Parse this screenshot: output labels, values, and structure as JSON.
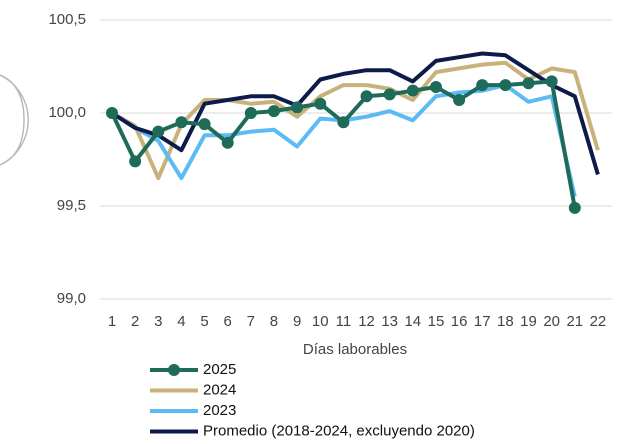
{
  "chart_data": {
    "type": "line",
    "x_label": "Días laborables",
    "categories": [
      "1",
      "2",
      "3",
      "4",
      "5",
      "6",
      "7",
      "8",
      "9",
      "10",
      "11",
      "12",
      "13",
      "14",
      "15",
      "16",
      "17",
      "18",
      "19",
      "20",
      "21",
      "22"
    ],
    "ylim": [
      99.0,
      100.5
    ],
    "yticks": [
      {
        "value": 99.0,
        "label": "99,0"
      },
      {
        "value": 99.5,
        "label": "99,5"
      },
      {
        "value": 100.0,
        "label": "100,0"
      },
      {
        "value": 100.5,
        "label": "100,5"
      }
    ],
    "grid": true,
    "series": [
      {
        "name": "2025",
        "color": "#1f6b5a",
        "markers": true,
        "values": [
          100.0,
          99.74,
          99.9,
          99.95,
          99.94,
          99.84,
          100.0,
          100.01,
          100.03,
          100.05,
          99.95,
          100.09,
          100.1,
          100.12,
          100.14,
          100.07,
          100.15,
          100.15,
          100.16,
          100.17,
          99.49,
          null
        ]
      },
      {
        "name": "2024",
        "color": "#c9b27a",
        "markers": false,
        "values": [
          100.0,
          99.93,
          99.65,
          99.94,
          100.07,
          100.07,
          100.05,
          100.06,
          99.98,
          100.09,
          100.15,
          100.15,
          100.13,
          100.07,
          100.22,
          100.24,
          100.26,
          100.27,
          100.18,
          100.24,
          100.22,
          99.8
        ]
      },
      {
        "name": "2023",
        "color": "#5bbcf5",
        "markers": false,
        "values": [
          100.0,
          99.92,
          99.85,
          99.65,
          99.88,
          99.88,
          99.9,
          99.91,
          99.82,
          99.97,
          99.96,
          99.98,
          100.01,
          99.96,
          100.09,
          100.11,
          100.12,
          100.15,
          100.06,
          100.09,
          99.55,
          null
        ]
      },
      {
        "name": "Promedio (2018-2024, excluyendo 2020)",
        "color": "#0d1b4a",
        "markers": false,
        "values": [
          100.0,
          99.92,
          99.88,
          99.8,
          100.05,
          100.07,
          100.09,
          100.09,
          100.04,
          100.18,
          100.21,
          100.23,
          100.23,
          100.17,
          100.28,
          100.3,
          100.32,
          100.31,
          100.23,
          100.15,
          100.09,
          99.67
        ]
      }
    ]
  }
}
